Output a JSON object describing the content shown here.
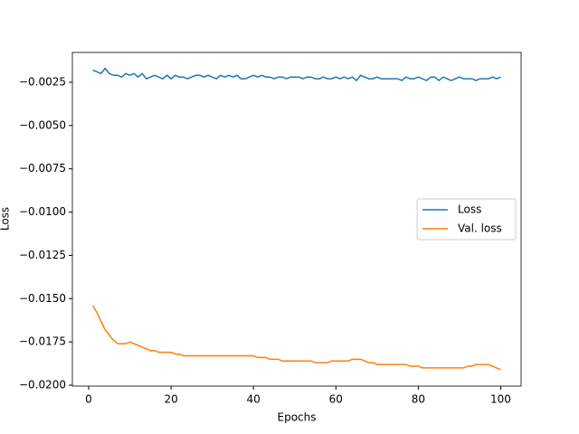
{
  "chart_data": {
    "type": "line",
    "xlabel": "Epochs",
    "ylabel": "Loss",
    "x": [
      1,
      2,
      3,
      4,
      5,
      6,
      7,
      8,
      9,
      10,
      11,
      12,
      13,
      14,
      15,
      16,
      17,
      18,
      19,
      20,
      21,
      22,
      23,
      24,
      25,
      26,
      27,
      28,
      29,
      30,
      31,
      32,
      33,
      34,
      35,
      36,
      37,
      38,
      39,
      40,
      41,
      42,
      43,
      44,
      45,
      46,
      47,
      48,
      49,
      50,
      51,
      52,
      53,
      54,
      55,
      56,
      57,
      58,
      59,
      60,
      61,
      62,
      63,
      64,
      65,
      66,
      67,
      68,
      69,
      70,
      71,
      72,
      73,
      74,
      75,
      76,
      77,
      78,
      79,
      80,
      81,
      82,
      83,
      84,
      85,
      86,
      87,
      88,
      89,
      90,
      91,
      92,
      93,
      94,
      95,
      96,
      97,
      98,
      99,
      100
    ],
    "series": [
      {
        "name": "Loss",
        "color": "#1f77b4",
        "values": [
          -0.0018,
          -0.0019,
          -0.002,
          -0.0017,
          -0.002,
          -0.0021,
          -0.0021,
          -0.0022,
          -0.002,
          -0.0021,
          -0.002,
          -0.0022,
          -0.002,
          -0.0023,
          -0.0022,
          -0.0021,
          -0.0022,
          -0.0023,
          -0.0021,
          -0.0023,
          -0.0021,
          -0.0022,
          -0.0022,
          -0.0023,
          -0.0022,
          -0.0021,
          -0.0021,
          -0.0022,
          -0.0021,
          -0.0022,
          -0.0023,
          -0.0021,
          -0.0022,
          -0.0021,
          -0.0022,
          -0.0021,
          -0.0023,
          -0.0023,
          -0.0022,
          -0.0021,
          -0.0022,
          -0.0021,
          -0.0022,
          -0.0022,
          -0.0023,
          -0.0022,
          -0.0022,
          -0.0023,
          -0.0022,
          -0.0022,
          -0.0022,
          -0.0023,
          -0.0022,
          -0.0022,
          -0.0023,
          -0.0023,
          -0.0022,
          -0.0023,
          -0.0023,
          -0.0022,
          -0.0023,
          -0.0022,
          -0.0023,
          -0.0022,
          -0.0024,
          -0.0021,
          -0.0022,
          -0.0023,
          -0.0023,
          -0.0022,
          -0.0023,
          -0.0023,
          -0.0023,
          -0.0023,
          -0.0023,
          -0.0024,
          -0.0022,
          -0.0023,
          -0.0023,
          -0.0022,
          -0.0023,
          -0.0024,
          -0.0022,
          -0.0022,
          -0.0024,
          -0.0022,
          -0.0023,
          -0.0024,
          -0.0023,
          -0.0022,
          -0.0023,
          -0.0023,
          -0.0023,
          -0.0024,
          -0.0023,
          -0.0023,
          -0.0023,
          -0.0022,
          -0.0023,
          -0.0022
        ]
      },
      {
        "name": "Val. loss",
        "color": "#ff7f0e",
        "values": [
          -0.0154,
          -0.0158,
          -0.0163,
          -0.0168,
          -0.0171,
          -0.0174,
          -0.0176,
          -0.0176,
          -0.0176,
          -0.0175,
          -0.0176,
          -0.0177,
          -0.0178,
          -0.0179,
          -0.018,
          -0.018,
          -0.0181,
          -0.0181,
          -0.0181,
          -0.0181,
          -0.0182,
          -0.0182,
          -0.0183,
          -0.0183,
          -0.0183,
          -0.0183,
          -0.0183,
          -0.0183,
          -0.0183,
          -0.0183,
          -0.0183,
          -0.0183,
          -0.0183,
          -0.0183,
          -0.0183,
          -0.0183,
          -0.0183,
          -0.0183,
          -0.0183,
          -0.0183,
          -0.0184,
          -0.0184,
          -0.0184,
          -0.0185,
          -0.0185,
          -0.0185,
          -0.0186,
          -0.0186,
          -0.0186,
          -0.0186,
          -0.0186,
          -0.0186,
          -0.0186,
          -0.0186,
          -0.0187,
          -0.0187,
          -0.0187,
          -0.0187,
          -0.0186,
          -0.0186,
          -0.0186,
          -0.0186,
          -0.0186,
          -0.0185,
          -0.0185,
          -0.0185,
          -0.0186,
          -0.0187,
          -0.0187,
          -0.0188,
          -0.0188,
          -0.0188,
          -0.0188,
          -0.0188,
          -0.0188,
          -0.0188,
          -0.0188,
          -0.0189,
          -0.0189,
          -0.0189,
          -0.019,
          -0.019,
          -0.019,
          -0.019,
          -0.019,
          -0.019,
          -0.019,
          -0.019,
          -0.019,
          -0.019,
          -0.019,
          -0.0189,
          -0.0189,
          -0.0188,
          -0.0188,
          -0.0188,
          -0.0188,
          -0.0189,
          -0.019,
          -0.0191
        ]
      }
    ],
    "xlim": [
      -3.95,
      104.95
    ],
    "xticks": [
      0,
      20,
      40,
      60,
      80,
      100
    ],
    "ylim": [
      -0.02005,
      -0.00078
    ],
    "yticks": [
      {
        "value": -0.0025,
        "label": "−0.0025"
      },
      {
        "value": -0.005,
        "label": "−0.0050"
      },
      {
        "value": -0.0075,
        "label": "−0.0075"
      },
      {
        "value": -0.01,
        "label": "−0.0100"
      },
      {
        "value": -0.0125,
        "label": "−0.0125"
      },
      {
        "value": -0.015,
        "label": "−0.0150"
      },
      {
        "value": -0.0175,
        "label": "−0.0175"
      },
      {
        "value": -0.02,
        "label": "−0.0200"
      }
    ],
    "grid": false,
    "legend_position": "center right"
  }
}
